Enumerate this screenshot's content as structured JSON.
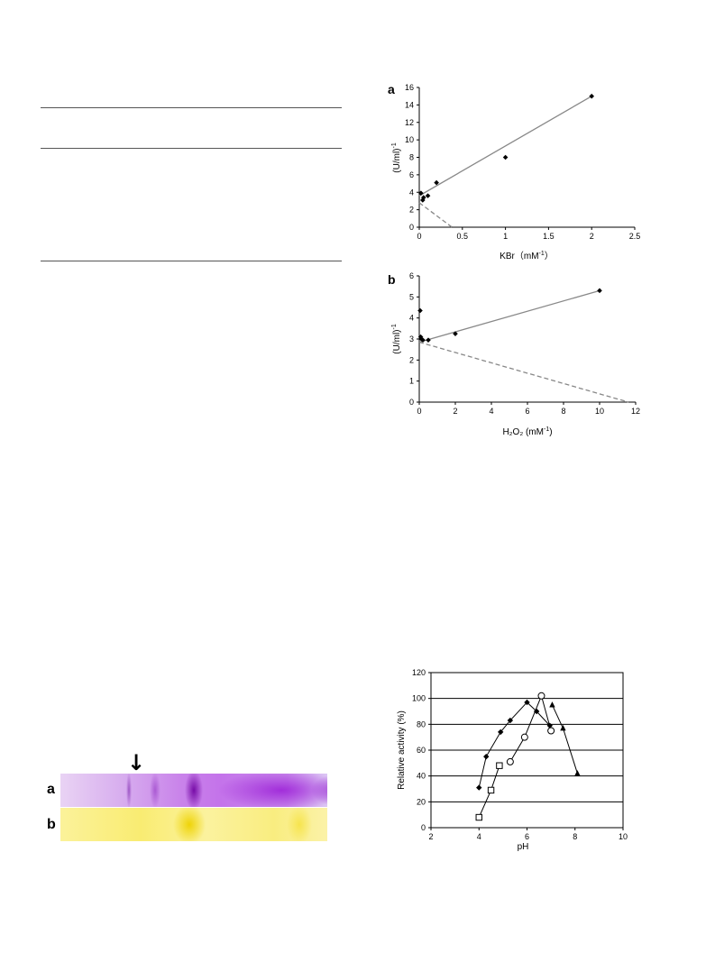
{
  "chart_data": [
    {
      "type": "scatter",
      "panel_label": "a",
      "title": "",
      "xlabel": "KBr（mM",
      "xlabel_sup": "-1",
      "xlabel_tail": "）",
      "ylabel": "(U/ml)",
      "ylabel_sup": "-1",
      "xlim": [
        0,
        2.5
      ],
      "ylim": [
        0,
        16
      ],
      "xticks": [
        0,
        0.5,
        1,
        1.5,
        2,
        2.5
      ],
      "xtick_labels": [
        "0",
        "0.5",
        "1",
        "1.5",
        "2",
        "2.5"
      ],
      "yticks": [
        0,
        2,
        4,
        6,
        8,
        10,
        12,
        14,
        16
      ],
      "ytick_labels": [
        "0",
        "2",
        "4",
        "6",
        "8",
        "10",
        "12",
        "14",
        "16"
      ],
      "points": [
        {
          "x": 0.02,
          "y": 3.9
        },
        {
          "x": 0.04,
          "y": 3.1
        },
        {
          "x": 0.05,
          "y": 3.4
        },
        {
          "x": 0.1,
          "y": 3.6
        },
        {
          "x": 0.2,
          "y": 5.1
        },
        {
          "x": 1.0,
          "y": 8.0
        },
        {
          "x": 2.0,
          "y": 15.0
        }
      ],
      "fit_line": {
        "x": [
          0,
          2.0
        ],
        "y": [
          3.6,
          15.0
        ]
      },
      "extrapolation": {
        "x": [
          0,
          0.38
        ],
        "y": [
          2.8,
          0
        ]
      }
    },
    {
      "type": "scatter",
      "panel_label": "b",
      "title": "",
      "xlabel": "H₂O₂ (mM",
      "xlabel_sup": "-1",
      "xlabel_tail": ")",
      "ylabel": "(U/ml)",
      "ylabel_sup": "-1",
      "xlim": [
        0,
        12
      ],
      "ylim": [
        0,
        6
      ],
      "xticks": [
        0,
        2,
        4,
        6,
        8,
        10,
        12
      ],
      "xtick_labels": [
        "0",
        "2",
        "4",
        "6",
        "8",
        "10",
        "12"
      ],
      "yticks": [
        0,
        1,
        2,
        3,
        4,
        5,
        6
      ],
      "ytick_labels": [
        "0",
        "1",
        "2",
        "3",
        "4",
        "5",
        "6"
      ],
      "points": [
        {
          "x": 0.05,
          "y": 4.35
        },
        {
          "x": 0.08,
          "y": 3.1
        },
        {
          "x": 0.12,
          "y": 3.0
        },
        {
          "x": 0.2,
          "y": 2.95
        },
        {
          "x": 0.5,
          "y": 2.95
        },
        {
          "x": 2.0,
          "y": 3.25
        },
        {
          "x": 10.0,
          "y": 5.3
        }
      ],
      "fit_line": {
        "x": [
          0,
          10.0
        ],
        "y": [
          2.85,
          5.3
        ]
      },
      "extrapolation": {
        "x": [
          0,
          11.6
        ],
        "y": [
          2.85,
          0
        ]
      }
    },
    {
      "type": "line",
      "title": "",
      "xlabel": "pH",
      "ylabel": "Relative activity (%)",
      "xlim": [
        2,
        10
      ],
      "ylim": [
        0,
        120
      ],
      "xticks": [
        2,
        4,
        6,
        8,
        10
      ],
      "xtick_labels": [
        "2",
        "4",
        "6",
        "8",
        "10"
      ],
      "yticks": [
        0,
        20,
        40,
        60,
        80,
        100,
        120
      ],
      "ytick_labels": [
        "0",
        "20",
        "40",
        "60",
        "80",
        "100",
        "120"
      ],
      "grid": "horizontal",
      "series": [
        {
          "marker": "filled-diamond",
          "x": [
            4.0,
            4.3,
            4.9,
            5.3,
            6.0,
            6.4,
            6.95
          ],
          "y": [
            31,
            55,
            74,
            83,
            97,
            90,
            79
          ]
        },
        {
          "marker": "open-square",
          "x": [
            4.0,
            4.5,
            4.85
          ],
          "y": [
            8,
            29,
            48
          ]
        },
        {
          "marker": "open-circle",
          "x": [
            5.3,
            5.9,
            6.6,
            7.0
          ],
          "y": [
            51,
            70,
            102,
            75
          ]
        },
        {
          "marker": "filled-triangle",
          "x": [
            7.05,
            7.5,
            8.1
          ],
          "y": [
            95,
            77,
            42
          ]
        }
      ]
    }
  ],
  "gel": {
    "lane_labels": [
      "a",
      "b"
    ],
    "arrow_glyph": "↓"
  }
}
